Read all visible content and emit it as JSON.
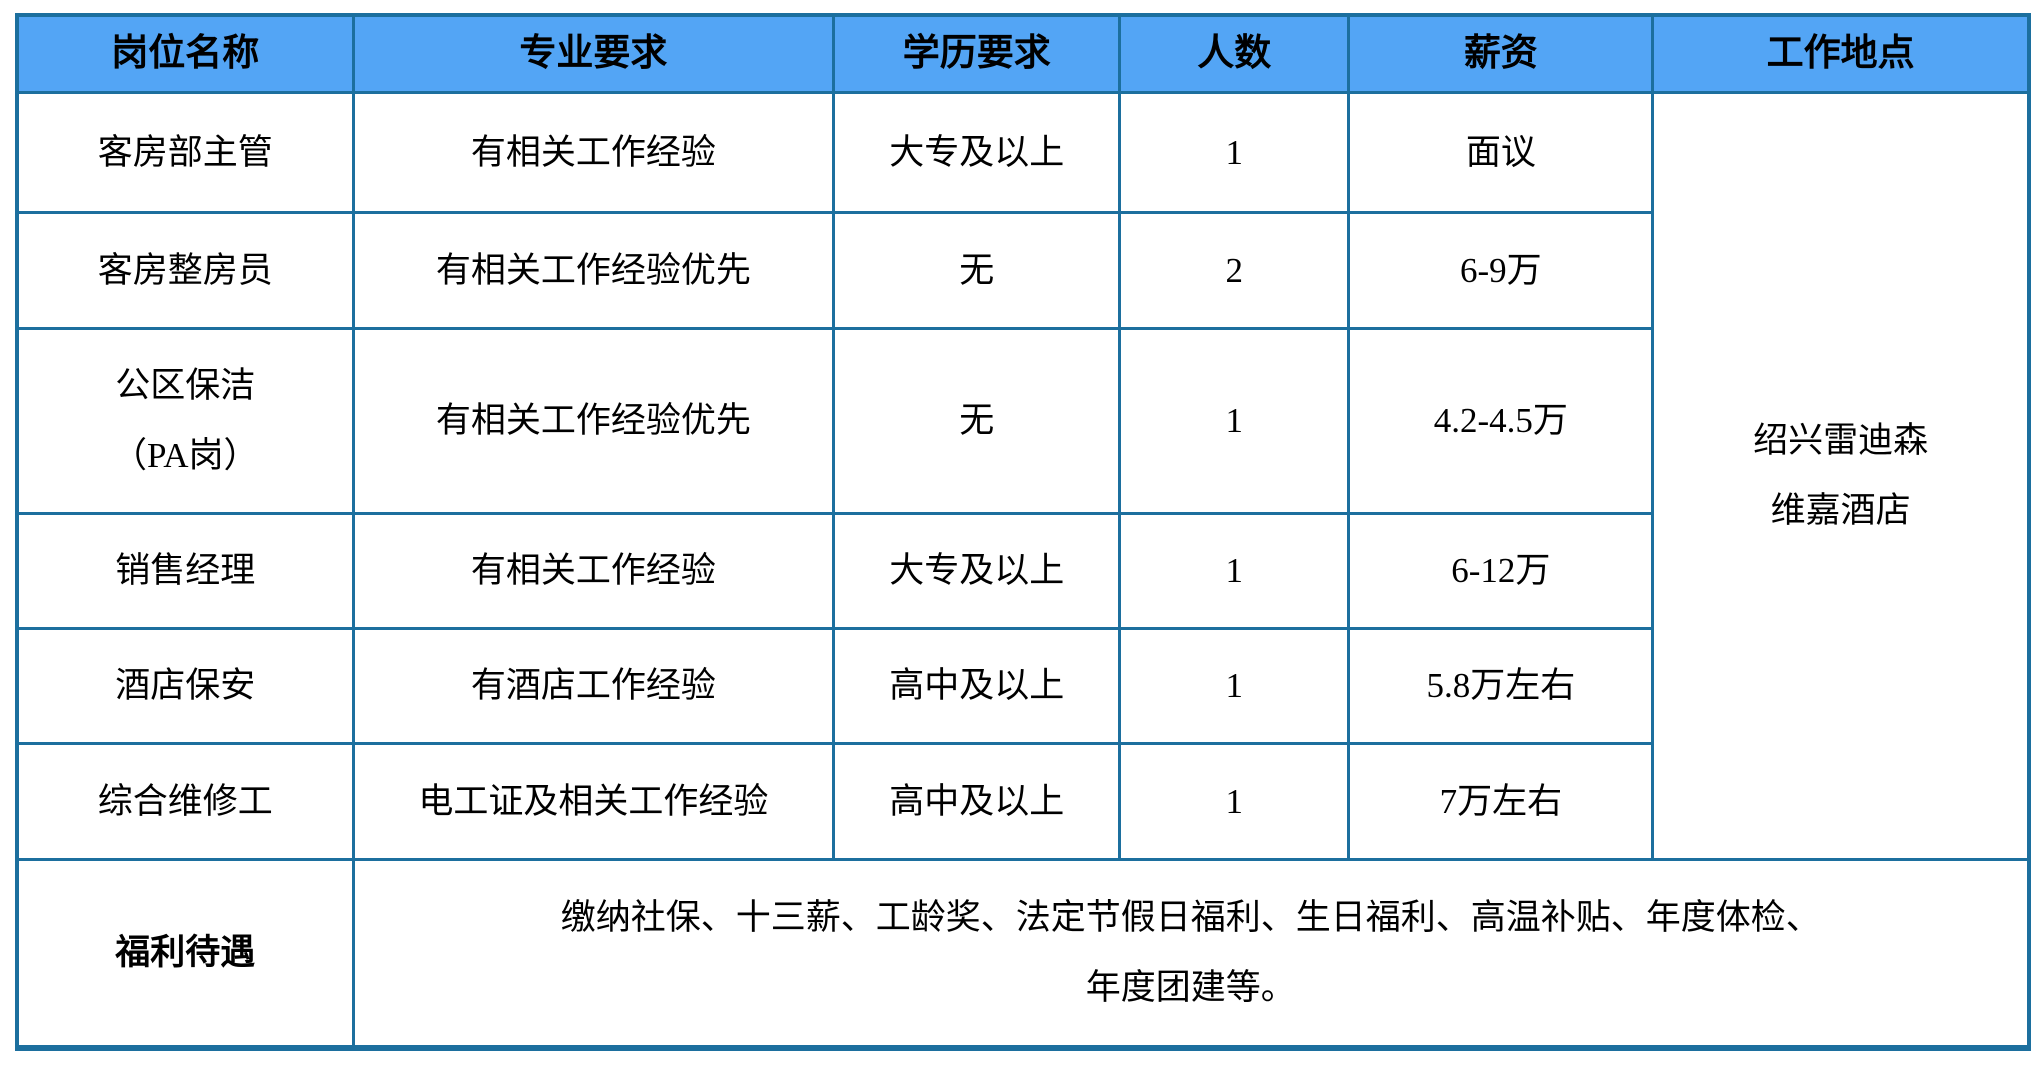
{
  "table": {
    "headers": {
      "position": "岗位名称",
      "major": "专业要求",
      "education": "学历要求",
      "count": "人数",
      "salary": "薪资",
      "location": "工作地点"
    },
    "rows": [
      {
        "position": "客房部主管",
        "major": "有相关工作经验",
        "education": "大专及以上",
        "count": "1",
        "salary": "面议"
      },
      {
        "position": "客房整房员",
        "major": "有相关工作经验优先",
        "education": "无",
        "count": "2",
        "salary": "6-9万"
      },
      {
        "position": "公区保洁\n（PA岗）",
        "major": "有相关工作经验优先",
        "education": "无",
        "count": "1",
        "salary": "4.2-4.5万"
      },
      {
        "position": "销售经理",
        "major": "有相关工作经验",
        "education": "大专及以上",
        "count": "1",
        "salary": "6-12万"
      },
      {
        "position": "酒店保安",
        "major": "有酒店工作经验",
        "education": "高中及以上",
        "count": "1",
        "salary": "5.8万左右"
      },
      {
        "position": "综合维修工",
        "major": "电工证及相关工作经验",
        "education": "高中及以上",
        "count": "1",
        "salary": "7万左右"
      }
    ],
    "location_value": "绍兴雷迪森\n维嘉酒店",
    "benefits": {
      "label": "福利待遇",
      "value": "缴纳社保、十三薪、工龄奖、法定节假日福利、生日福利、高温补贴、年度体检、\n年度团建等。"
    },
    "colors": {
      "header_bg": "#53a5f5",
      "border": "#1c6f9e",
      "text": "#000000"
    }
  }
}
